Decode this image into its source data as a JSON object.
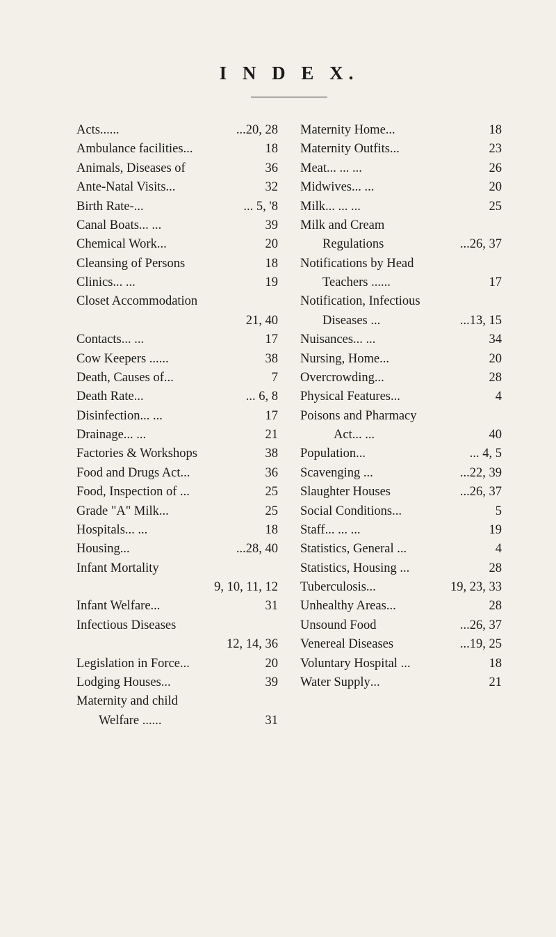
{
  "title": "I N D E X.",
  "left": [
    {
      "label": "Acts",
      "tail": "...",
      "dots": "...",
      "pages": "...20, 28"
    },
    {
      "label": "Ambulance facilities",
      "tail": "...",
      "dots": "",
      "pages": "18"
    },
    {
      "label": "Animals, Diseases of",
      "tail": "",
      "dots": "",
      "pages": "36"
    },
    {
      "label": "Ante-Natal Visits",
      "tail": "...",
      "dots": "",
      "pages": "32"
    },
    {
      "label": "Birth Rate",
      "tail": "-",
      "dots": "...",
      "pages": "... 5, '8"
    },
    {
      "label": "Canal Boats",
      "tail": "",
      "dots": "...   ...",
      "pages": "39"
    },
    {
      "label": "Chemical Work",
      "tail": "",
      "dots": "...",
      "pages": "20"
    },
    {
      "label": "Cleansing of Persons",
      "tail": "",
      "dots": "",
      "pages": "18"
    },
    {
      "label": "Clinics",
      "tail": "",
      "dots": "...   ...",
      "pages": "19"
    },
    {
      "label": "Closet Accommodation",
      "tail": "",
      "dots": "",
      "pages": ""
    },
    {
      "label": "",
      "tail": "",
      "dots": "",
      "pages": "21, 40",
      "cont": true
    },
    {
      "label": "Contacts",
      "tail": "",
      "dots": "...   ...",
      "pages": "17"
    },
    {
      "label": "Cow Keepers",
      "tail": " ...",
      "dots": "...",
      "pages": "38"
    },
    {
      "label": "Death, Causes of",
      "tail": "",
      "dots": "...",
      "pages": "7"
    },
    {
      "label": "Death Rate",
      "tail": "",
      "dots": "...",
      "pages": "... 6, 8"
    },
    {
      "label": "Disinfection",
      "tail": "",
      "dots": "...   ...",
      "pages": "17"
    },
    {
      "label": "Drainage",
      "tail": "",
      "dots": "...   ...",
      "pages": "21"
    },
    {
      "label": "Factories & Workshops",
      "tail": "",
      "dots": "",
      "pages": "38"
    },
    {
      "label": "Food and Drugs Act",
      "tail": "...",
      "dots": "",
      "pages": "36"
    },
    {
      "label": "Food, Inspection of",
      "tail": " ...",
      "dots": "",
      "pages": "25"
    },
    {
      "label": "Grade \"A\" Milk",
      "tail": "",
      "dots": "...",
      "pages": "25"
    },
    {
      "label": "Hospitals",
      "tail": "",
      "dots": "...   ...",
      "pages": "18"
    },
    {
      "label": "Housing",
      "tail": "",
      "dots": "...",
      "pages": "...28, 40"
    },
    {
      "label": "Infant Mortality",
      "tail": "",
      "dots": "",
      "pages": ""
    },
    {
      "label": "",
      "tail": "",
      "dots": "",
      "pages": "9, 10, 11, 12",
      "cont": true
    },
    {
      "label": "Infant Welfare",
      "tail": "",
      "dots": "...",
      "pages": "31"
    },
    {
      "label": "Infectious Diseases",
      "tail": "",
      "dots": "",
      "pages": ""
    },
    {
      "label": "",
      "tail": "",
      "dots": "",
      "pages": "12, 14, 36",
      "cont": true
    },
    {
      "label": "Legislation in Force",
      "tail": "...",
      "dots": "",
      "pages": "20"
    },
    {
      "label": "Lodging Houses",
      "tail": "",
      "dots": "...",
      "pages": "39"
    },
    {
      "label": "Maternity and child",
      "tail": "",
      "dots": "",
      "pages": ""
    },
    {
      "label": "Welfare ...",
      "tail": "",
      "dots": "...",
      "pages": "31",
      "indent": "1"
    }
  ],
  "right": [
    {
      "label": "Maternity Home",
      "tail": "",
      "dots": "...",
      "pages": "18"
    },
    {
      "label": "Maternity Outfits",
      "tail": "",
      "dots": "...",
      "pages": "23"
    },
    {
      "label": "Meat",
      "tail": "",
      "dots": "...   ...   ...",
      "pages": "26"
    },
    {
      "label": "Midwives",
      "tail": "",
      "dots": "...   ...",
      "pages": "20"
    },
    {
      "label": "Milk",
      "tail": "",
      "dots": "...   ...   ...",
      "pages": "25"
    },
    {
      "label": "Milk and Cream",
      "tail": "",
      "dots": "",
      "pages": ""
    },
    {
      "label": "Regulations",
      "tail": "",
      "dots": "",
      "pages": "...26, 37",
      "indent": "1"
    },
    {
      "label": "Notifications by Head",
      "tail": "",
      "dots": "",
      "pages": ""
    },
    {
      "label": "Teachers ...",
      "tail": "",
      "dots": "...",
      "pages": "17",
      "indent": "1"
    },
    {
      "label": "Notification, Infectious",
      "tail": "",
      "dots": "",
      "pages": ""
    },
    {
      "label": "Diseases ...",
      "tail": "",
      "dots": "",
      "pages": "...13, 15",
      "indent": "1"
    },
    {
      "label": "Nuisances",
      "tail": "",
      "dots": "...   ...",
      "pages": "34"
    },
    {
      "label": "Nursing, Home",
      "tail": "",
      "dots": "...",
      "pages": "20"
    },
    {
      "label": "Overcrowding",
      "tail": "",
      "dots": "...",
      "pages": "28"
    },
    {
      "label": "Physical Features",
      "tail": "",
      "dots": "...",
      "pages": "4"
    },
    {
      "label": "Poisons and Pharmacy",
      "tail": "",
      "dots": "",
      "pages": ""
    },
    {
      "label": "Act",
      "tail": "",
      "dots": "...   ...",
      "pages": "40",
      "indent": "1b"
    },
    {
      "label": "Population",
      "tail": "",
      "dots": "...",
      "pages": "... 4, 5"
    },
    {
      "label": "Scavenging",
      "tail": " ...",
      "dots": "",
      "pages": "...22, 39"
    },
    {
      "label": "Slaughter Houses",
      "tail": "",
      "dots": "",
      "pages": "...26, 37"
    },
    {
      "label": "Social Conditions",
      "tail": "",
      "dots": "...",
      "pages": "5"
    },
    {
      "label": "Staff",
      "tail": "",
      "dots": "...   ...   ...",
      "pages": "19"
    },
    {
      "label": "Statistics, General",
      "tail": " ...",
      "dots": "",
      "pages": "4"
    },
    {
      "label": "Statistics, Housing",
      "tail": " ...",
      "dots": "",
      "pages": "28"
    },
    {
      "label": "Tuberculosis",
      "tail": "",
      "dots": "...",
      "pages": "19, 23, 33"
    },
    {
      "label": "Unhealthy Areas",
      "tail": "",
      "dots": "...",
      "pages": "28"
    },
    {
      "label": "Unsound Food",
      "tail": "",
      "dots": "",
      "pages": "...26, 37"
    },
    {
      "label": "Venereal Diseases",
      "tail": "",
      "dots": "",
      "pages": "...19, 25"
    },
    {
      "label": "Voluntary Hospital",
      "tail": " ...",
      "dots": "",
      "pages": "18"
    },
    {
      "label": "Water Supply",
      "tail": "",
      "dots": "...",
      "pages": "21"
    }
  ]
}
